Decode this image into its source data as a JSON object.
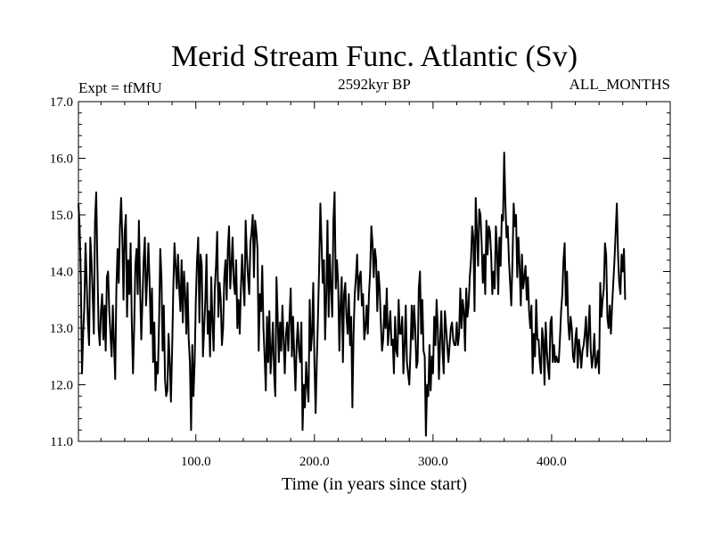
{
  "chart_data": {
    "type": "line",
    "title": "Merid Stream Func. Atlantic (Sv)",
    "subtitle_left": "Expt = tfMfU",
    "subtitle_center": "2592kyr BP",
    "subtitle_right": "ALL_MONTHS",
    "xlabel": "Time (in years since start)",
    "ylabel": "",
    "xlim": [
      1,
      500
    ],
    "ylim": [
      11.0,
      17.0
    ],
    "x_ticks": [
      100.0,
      200.0,
      300.0,
      400.0
    ],
    "x_tick_labels": [
      "100.0",
      "200.0",
      "300.0",
      "400.0"
    ],
    "y_ticks": [
      11.0,
      12.0,
      13.0,
      14.0,
      15.0,
      16.0,
      17.0
    ],
    "y_tick_labels": [
      "11.0",
      "12.0",
      "13.0",
      "14.0",
      "15.0",
      "16.0",
      "17.0"
    ],
    "grid": false,
    "series": [
      {
        "name": "Merid Stream Func. Atlantic",
        "x_start": 1,
        "x_step": 1,
        "values": [
          15.2,
          14.8,
          13.9,
          12.2,
          12.9,
          13.4,
          14.5,
          13.8,
          13.1,
          12.7,
          14.6,
          14.2,
          13.6,
          12.9,
          14.9,
          15.4,
          14.1,
          13.0,
          12.7,
          13.3,
          13.6,
          12.8,
          13.4,
          12.6,
          13.9,
          14.0,
          13.3,
          12.9,
          12.5,
          13.4,
          12.7,
          12.1,
          13.7,
          14.4,
          13.8,
          14.8,
          15.3,
          14.6,
          13.5,
          14.7,
          15.0,
          13.2,
          14.2,
          13.6,
          14.5,
          13.1,
          12.2,
          13.0,
          14.1,
          14.4,
          13.6,
          14.9,
          13.7,
          12.8,
          13.5,
          14.2,
          14.6,
          13.4,
          13.9,
          14.5,
          13.8,
          12.9,
          13.7,
          12.4,
          13.1,
          11.9,
          12.4,
          12.2,
          13.1,
          14.4,
          13.9,
          12.6,
          13.4,
          12.1,
          11.8,
          11.9,
          12.9,
          12.4,
          11.7,
          12.6,
          13.7,
          14.5,
          14.1,
          13.7,
          14.3,
          13.7,
          13.3,
          14.2,
          13.1,
          14.0,
          13.6,
          12.9,
          13.8,
          12.8,
          12.4,
          11.2,
          12.7,
          11.8,
          12.4,
          13.5,
          14.2,
          14.6,
          13.1,
          14.3,
          14.1,
          12.5,
          13.0,
          13.5,
          14.3,
          12.9,
          13.3,
          12.5,
          13.9,
          13.1,
          12.6,
          13.7,
          14.1,
          14.7,
          13.2,
          13.8,
          13.5,
          12.7,
          13.0,
          13.9,
          14.2,
          13.5,
          14.4,
          14.8,
          13.7,
          14.1,
          14.6,
          13.8,
          13.6,
          14.2,
          13.0,
          13.5,
          12.9,
          13.7,
          14.3,
          13.8,
          13.4,
          14.9,
          14.3,
          13.9,
          13.6,
          14.5,
          14.7,
          15.0,
          13.9,
          14.9,
          14.7,
          14.4,
          12.6,
          13.6,
          13.3,
          14.1,
          13.0,
          12.5,
          11.9,
          13.2,
          12.4,
          13.3,
          12.2,
          12.6,
          13.1,
          12.2,
          11.8,
          13.9,
          13.2,
          12.4,
          13.1,
          12.6,
          13.4,
          12.8,
          12.2,
          12.9,
          13.1,
          12.6,
          13.2,
          13.7,
          12.5,
          13.2,
          12.5,
          11.9,
          12.7,
          13.1,
          12.6,
          12.4,
          13.1,
          11.2,
          12.0,
          11.6,
          12.4,
          12.0,
          11.7,
          13.5,
          12.6,
          12.9,
          13.8,
          12.4,
          11.5,
          12.4,
          13.2,
          14.1,
          15.2,
          14.5,
          13.8,
          14.2,
          12.8,
          13.6,
          14.9,
          13.2,
          14.3,
          13.7,
          13.2,
          14.9,
          15.4,
          13.7,
          14.2,
          13.8,
          12.6,
          13.4,
          13.9,
          12.4,
          13.6,
          13.8,
          13.2,
          12.9,
          13.6,
          12.7,
          13.2,
          11.6,
          12.9,
          13.6,
          13.9,
          14.3,
          13.5,
          13.9,
          14.0,
          13.4,
          13.6,
          12.8,
          13.0,
          13.4,
          12.9,
          13.6,
          14.0,
          14.8,
          14.5,
          13.9,
          14.4,
          14.2,
          13.3,
          14.0,
          13.7,
          13.1,
          12.6,
          12.8,
          13.4,
          13.0,
          13.7,
          12.7,
          13.0,
          13.3,
          12.7,
          12.8,
          12.2,
          13.2,
          12.6,
          12.5,
          13.5,
          12.9,
          12.9,
          13.2,
          12.2,
          12.7,
          13.4,
          12.4,
          12.2,
          12.0,
          12.6,
          13.4,
          12.8,
          13.4,
          13.0,
          12.3,
          12.4,
          13.7,
          14.0,
          12.9,
          13.5,
          12.6,
          12.5,
          11.1,
          12.0,
          11.8,
          12.7,
          11.9,
          12.5,
          12.2,
          13.2,
          12.7,
          13.5,
          13.0,
          12.1,
          12.8,
          13.3,
          12.6,
          12.2,
          13.3,
          13.0,
          12.7,
          12.4,
          12.7,
          13.0,
          13.1,
          12.8,
          12.7,
          12.7,
          13.1,
          12.7,
          12.9,
          13.7,
          13.0,
          13.5,
          13.3,
          12.6,
          13.7,
          13.2,
          13.4,
          13.9,
          14.2,
          14.8,
          14.6,
          13.3,
          15.3,
          14.7,
          14.1,
          15.1,
          15.0,
          14.5,
          13.8,
          14.3,
          13.6,
          14.9,
          14.3,
          14.8,
          14.7,
          14.3,
          13.6,
          14.0,
          13.7,
          14.8,
          14.4,
          13.6,
          14.6,
          14.1,
          15.0,
          14.9,
          16.1,
          15.2,
          14.6,
          14.8,
          14.2,
          13.8,
          13.4,
          14.2,
          15.2,
          14.8,
          15.0,
          13.9,
          14.6,
          14.1,
          13.4,
          14.3,
          13.7,
          13.9,
          14.1,
          13.5,
          13.9,
          13.3,
          13.0,
          13.4,
          12.2,
          12.9,
          12.5,
          13.5,
          12.8,
          12.8,
          12.4,
          12.2,
          13.0,
          12.8,
          12.0,
          13.1,
          12.6,
          12.3,
          12.1,
          13.1,
          13.2,
          12.4,
          12.7,
          12.4,
          12.5,
          12.4,
          12.4,
          12.8,
          13.3,
          13.6,
          14.2,
          14.5,
          13.4,
          14.0,
          13.1,
          12.8,
          13.2,
          13.0,
          12.5,
          12.4,
          12.8,
          13.0,
          12.3,
          12.8,
          12.6,
          12.3,
          12.6,
          12.7,
          12.9,
          13.2,
          12.5,
          12.9,
          13.4,
          12.6,
          12.3,
          12.5,
          12.9,
          12.3,
          12.4,
          12.6,
          12.2,
          13.8,
          13.2,
          13.5,
          13.7,
          14.5,
          14.3,
          13.2,
          13.0,
          13.4,
          12.9,
          13.4,
          13.8,
          14.2,
          14.7,
          15.2,
          14.3,
          13.8,
          13.6,
          14.3,
          14.0,
          14.4,
          13.5
        ]
      }
    ]
  }
}
